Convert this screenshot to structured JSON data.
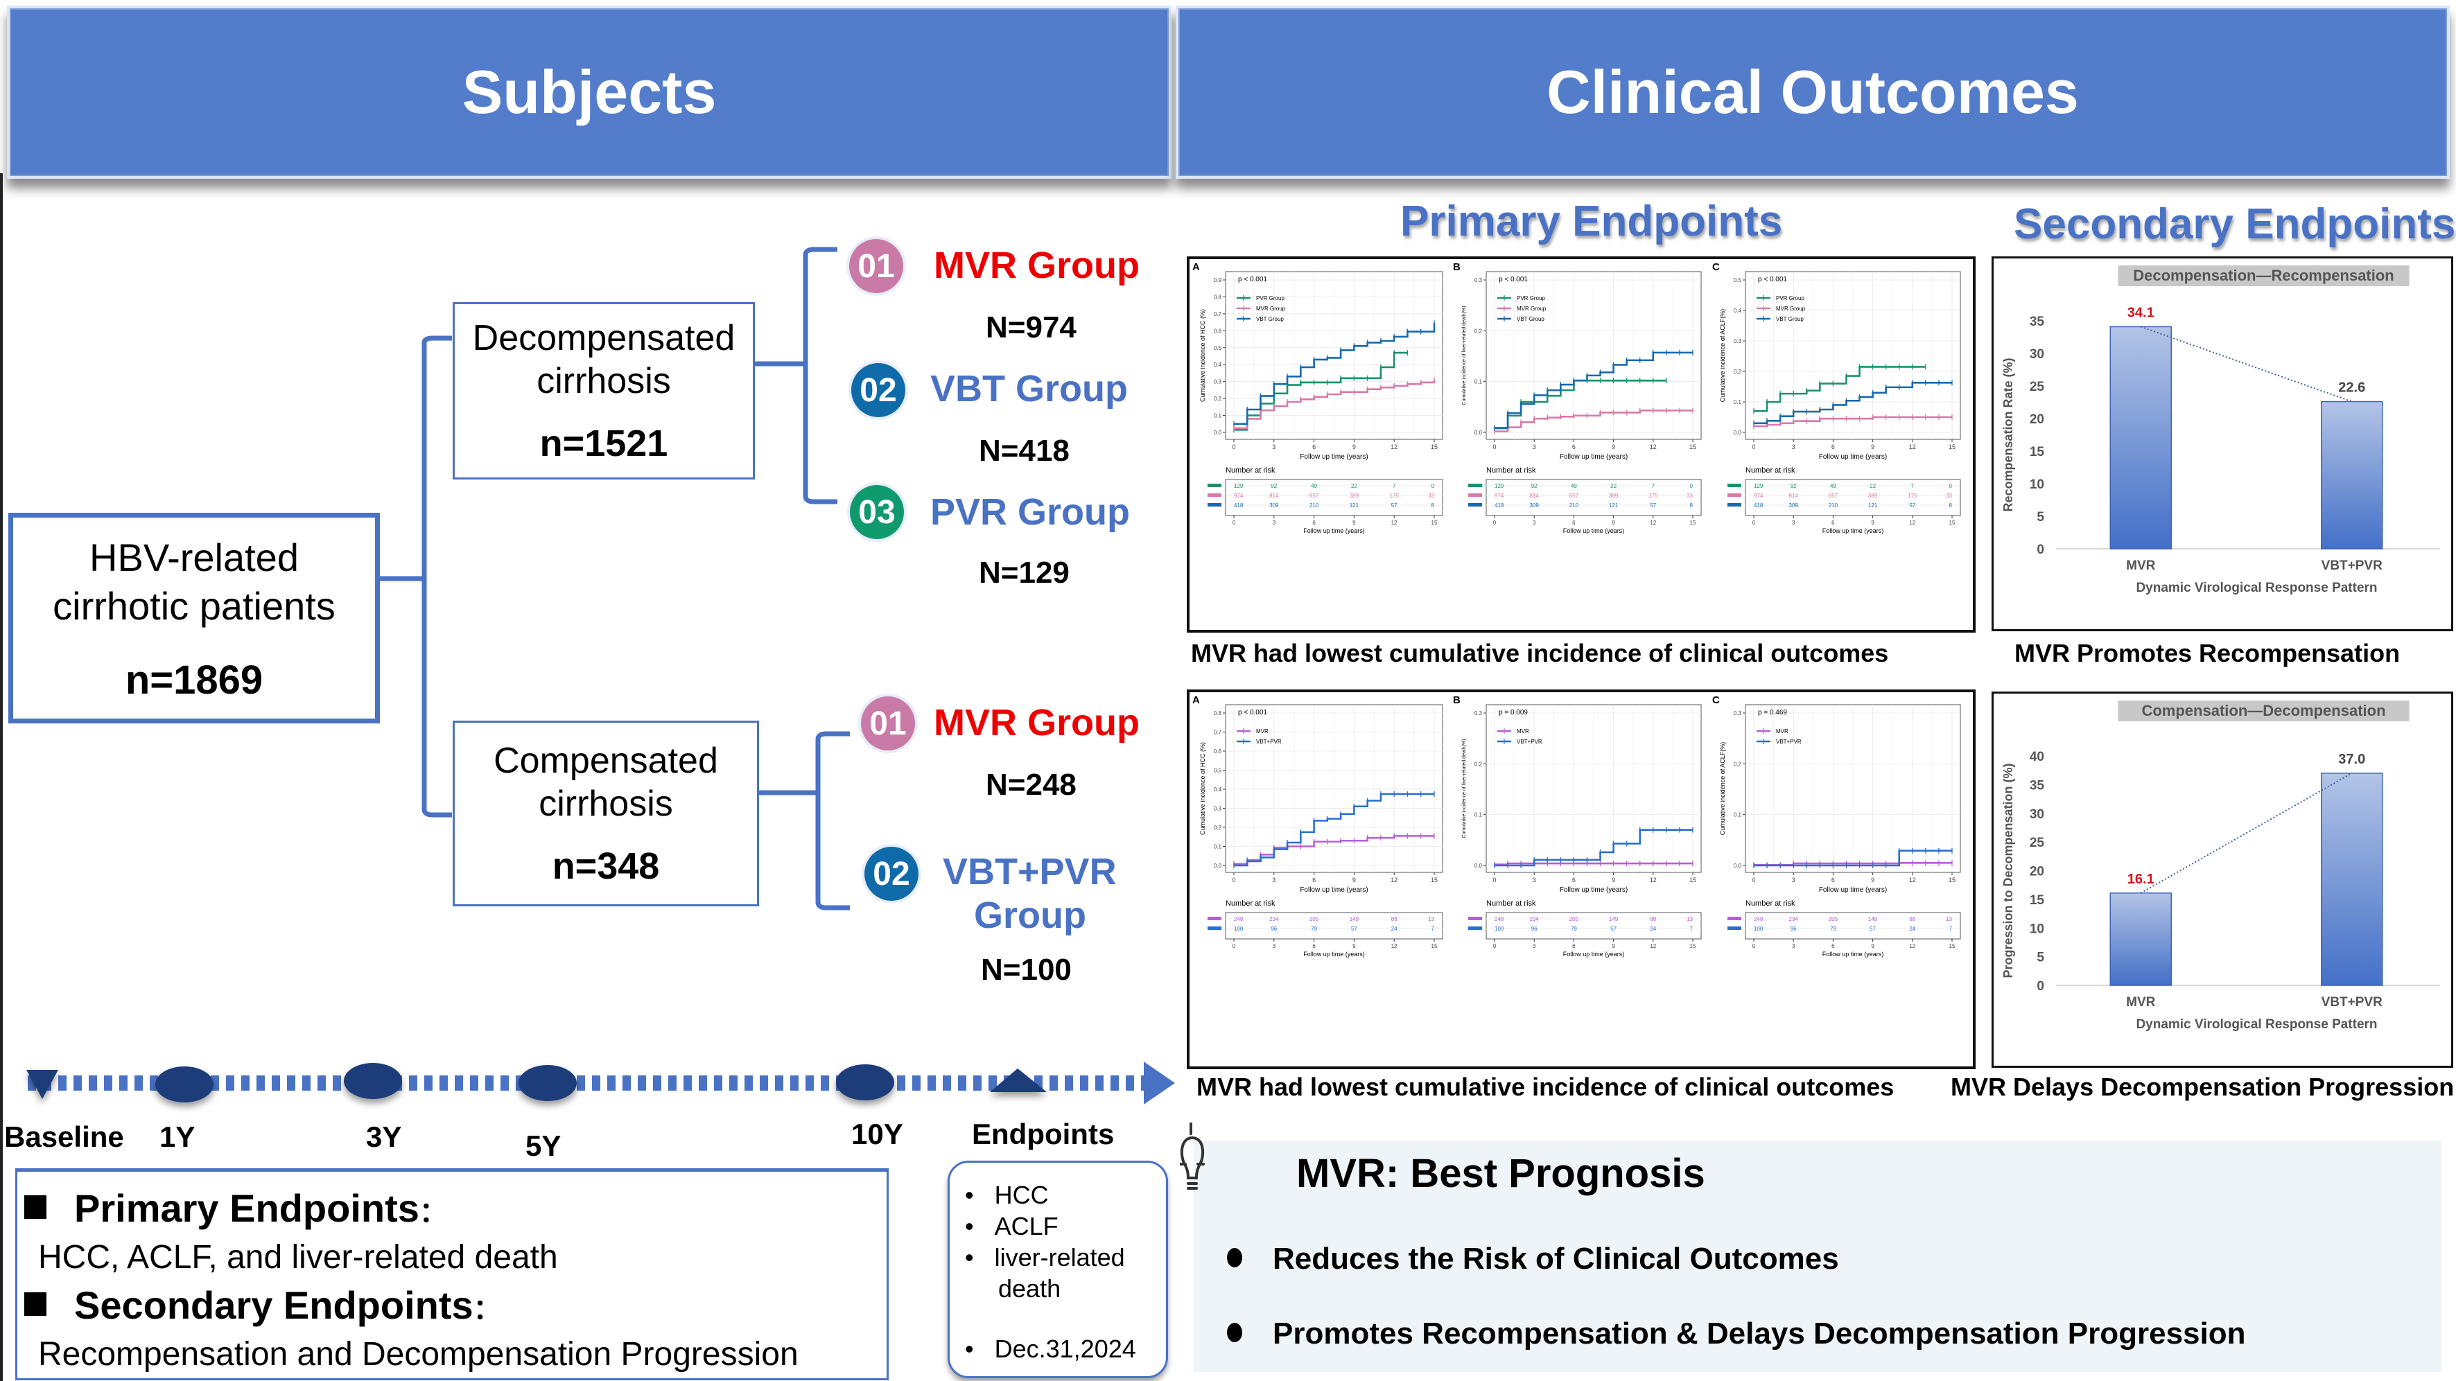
{
  "header": {
    "left_title": "Subjects",
    "right_title": "Clinical Outcomes"
  },
  "colors": {
    "header_blue": "#537dcb",
    "accent_blue": "#4a72c4",
    "mvr_red": "#ee0000",
    "badge_mvr": "#c97aa6",
    "badge_vbt": "#0f6aa9",
    "badge_pvr": "#0f9a6e",
    "km_pvr": "#17936a",
    "km_mvr": "#d77aa8",
    "km_vbt": "#1669b0",
    "km_mvr2": "#b65fd6",
    "km_vbtpvr": "#2a6fcf",
    "value_red": "#d0161b"
  },
  "flow": {
    "root": {
      "label_line1": "HBV-related",
      "label_line2": "cirrhotic patients",
      "n": "n=1869"
    },
    "decompensated": {
      "label_line1": "Decompensated",
      "label_line2": "cirrhosis",
      "n": "n=1521",
      "groups": [
        {
          "badge": "01",
          "name": "MVR Group",
          "n": "N=974"
        },
        {
          "badge": "02",
          "name": "VBT Group",
          "n": "N=418"
        },
        {
          "badge": "03",
          "name": "PVR Group",
          "n": "N=129"
        }
      ]
    },
    "compensated": {
      "label_line1": "Compensated",
      "label_line2": "cirrhosis",
      "n": "n=348",
      "groups": [
        {
          "badge": "01",
          "name": "MVR Group",
          "n": "N=248"
        },
        {
          "badge": "02",
          "name_line1": "VBT+PVR",
          "name_line2": "Group",
          "n": "N=100"
        }
      ]
    }
  },
  "timeline": {
    "labels": [
      "Baseline",
      "1Y",
      "3Y",
      "5Y",
      "10Y",
      "Endpoints"
    ],
    "endpoint_items": [
      "HCC",
      "ACLF",
      "liver-related",
      "death",
      "Dec.31,2024"
    ]
  },
  "endpoints_box": {
    "primary_heading": "Primary Endpoints",
    "primary_text": "HCC, ACLF, and liver-related death",
    "secondary_heading": "Secondary Endpoints",
    "secondary_text": "Recompensation and Decompensation Progression",
    "colon": "："
  },
  "outcomes": {
    "primary_title": "Primary Endpoints",
    "secondary_title": "Secondary Endpoints",
    "caption_top_left": "MVR had lowest cumulative incidence of clinical outcomes",
    "caption_top_right": "MVR Promotes Recompensation",
    "caption_bottom_left": "MVR had lowest cumulative incidence of clinical outcomes",
    "caption_bottom_right": "MVR Delays Decompensation Progression"
  },
  "summary": {
    "title": "MVR: Best Prognosis",
    "bullets": [
      "Reduces the Risk of Clinical Outcomes",
      "Promotes Recompensation & Delays Decompensation Progression"
    ]
  },
  "chart_data": [
    {
      "type": "line",
      "id": "km-top-A",
      "panel": "A",
      "title": "",
      "pvalue": "p < 0.001",
      "xlabel": "Follow up time (years)",
      "ylabel": "Cumulative incidence of HCC (%)",
      "xlim": [
        0,
        15
      ],
      "ylim": [
        0,
        0.9
      ],
      "xticks": [
        0,
        3,
        6,
        9,
        12,
        15
      ],
      "yticks": [
        0.0,
        0.1,
        0.2,
        0.3,
        0.4,
        0.5,
        0.6,
        0.7,
        0.8,
        0.9
      ],
      "legend": "top-left",
      "series": [
        {
          "name": "PVR Group",
          "color": "#17936a",
          "x": [
            0,
            1,
            2,
            3,
            4,
            5,
            8,
            11,
            12,
            13
          ],
          "y": [
            0.015,
            0.1,
            0.17,
            0.23,
            0.28,
            0.295,
            0.32,
            0.385,
            0.47,
            0.47
          ]
        },
        {
          "name": "MVR Group",
          "color": "#d77aa8",
          "x": [
            0,
            1,
            2,
            3,
            4,
            5,
            6,
            7,
            8,
            10,
            11,
            12,
            13,
            14,
            15
          ],
          "y": [
            0.025,
            0.08,
            0.13,
            0.155,
            0.18,
            0.195,
            0.21,
            0.225,
            0.238,
            0.255,
            0.265,
            0.275,
            0.285,
            0.295,
            0.31
          ]
        },
        {
          "name": "VBT Group",
          "color": "#1669b0",
          "x": [
            0,
            1,
            2,
            3,
            4,
            5,
            6,
            7,
            8,
            9,
            10,
            11,
            12,
            13,
            15
          ],
          "y": [
            0.05,
            0.135,
            0.215,
            0.285,
            0.33,
            0.385,
            0.43,
            0.44,
            0.485,
            0.51,
            0.53,
            0.54,
            0.565,
            0.595,
            0.645
          ]
        }
      ],
      "risk_table": {
        "title": "Number at risk",
        "times": [
          0,
          3,
          6,
          9,
          12,
          15
        ],
        "rows": [
          {
            "name": "PVR Group",
            "values": [
              129,
              92,
              49,
              22,
              7,
              0
            ]
          },
          {
            "name": "MVR Group",
            "values": [
              974,
              814,
              657,
              389,
              175,
              33
            ]
          },
          {
            "name": "VBT Group",
            "values": [
              418,
              309,
              210,
              121,
              57,
              8
            ]
          }
        ]
      }
    },
    {
      "type": "line",
      "id": "km-top-B",
      "panel": "B",
      "pvalue": "p < 0.001",
      "xlabel": "Follow up time (years)",
      "ylabel": "Cumulative incidence of liver-related death(%)",
      "xlim": [
        0,
        15
      ],
      "ylim": [
        0,
        0.3
      ],
      "xticks": [
        0,
        3,
        6,
        9,
        12,
        15
      ],
      "yticks": [
        0.0,
        0.1,
        0.2,
        0.3
      ],
      "legend": "top-left",
      "series": [
        {
          "name": "PVR Group",
          "color": "#17936a",
          "x": [
            0,
            1,
            2,
            4,
            5,
            6,
            13
          ],
          "y": [
            0.008,
            0.033,
            0.06,
            0.072,
            0.083,
            0.102,
            0.102
          ]
        },
        {
          "name": "MVR Group",
          "color": "#d77aa8",
          "x": [
            0,
            1,
            2,
            3,
            4,
            5,
            6,
            8,
            11,
            15
          ],
          "y": [
            0.002,
            0.01,
            0.02,
            0.027,
            0.029,
            0.031,
            0.033,
            0.039,
            0.043,
            0.043
          ]
        },
        {
          "name": "VBT Group",
          "color": "#1669b0",
          "x": [
            0,
            1,
            2,
            3,
            4,
            5,
            6,
            7,
            8,
            9,
            10,
            12,
            15
          ],
          "y": [
            0.009,
            0.038,
            0.056,
            0.073,
            0.083,
            0.094,
            0.102,
            0.112,
            0.118,
            0.133,
            0.142,
            0.157,
            0.157
          ]
        }
      ],
      "risk_table": {
        "title": "Number at risk",
        "times": [
          0,
          3,
          6,
          9,
          12,
          15
        ],
        "rows": [
          {
            "name": "PVR Group",
            "values": [
              129,
              92,
              49,
              22,
              7,
              0
            ]
          },
          {
            "name": "MVR Group",
            "values": [
              974,
              814,
              657,
              389,
              175,
              33
            ]
          },
          {
            "name": "VBT Group",
            "values": [
              418,
              309,
              210,
              121,
              57,
              8
            ]
          }
        ]
      }
    },
    {
      "type": "line",
      "id": "km-top-C",
      "panel": "C",
      "pvalue": "p < 0.001",
      "xlabel": "Follow up time (years)",
      "ylabel": "Cumulative incidence of ACLF(%)",
      "xlim": [
        0,
        15
      ],
      "ylim": [
        0,
        0.5
      ],
      "xticks": [
        0,
        3,
        6,
        9,
        12,
        15
      ],
      "yticks": [
        0.0,
        0.1,
        0.2,
        0.3,
        0.4,
        0.5
      ],
      "legend": "top-left",
      "series": [
        {
          "name": "PVR Group",
          "color": "#17936a",
          "x": [
            0,
            1,
            2,
            4,
            5,
            7,
            8,
            13
          ],
          "y": [
            0.07,
            0.1,
            0.127,
            0.137,
            0.16,
            0.185,
            0.215,
            0.215
          ]
        },
        {
          "name": "MVR Group",
          "color": "#d77aa8",
          "x": [
            0,
            1,
            2,
            3,
            5,
            9,
            15
          ],
          "y": [
            0.02,
            0.025,
            0.03,
            0.037,
            0.045,
            0.05,
            0.05
          ]
        },
        {
          "name": "VBT Group",
          "color": "#1669b0",
          "x": [
            0,
            1,
            2,
            3,
            5,
            6,
            7,
            8,
            9,
            10,
            12,
            15
          ],
          "y": [
            0.03,
            0.038,
            0.053,
            0.068,
            0.075,
            0.09,
            0.104,
            0.116,
            0.13,
            0.148,
            0.163,
            0.163
          ]
        }
      ],
      "risk_table": {
        "title": "Number at risk",
        "times": [
          0,
          3,
          6,
          9,
          12,
          15
        ],
        "rows": [
          {
            "name": "PVR Group",
            "values": [
              129,
              92,
              49,
              22,
              7,
              0
            ]
          },
          {
            "name": "MVR Group",
            "values": [
              974,
              814,
              657,
              389,
              175,
              33
            ]
          },
          {
            "name": "VBT Group",
            "values": [
              418,
              309,
              210,
              121,
              57,
              8
            ]
          }
        ]
      }
    },
    {
      "type": "line",
      "id": "km-bottom-A",
      "panel": "A",
      "pvalue": "p < 0.001",
      "xlabel": "Follow up time (years)",
      "ylabel": "Cumulative incidence of HCC (%)",
      "xlim": [
        0,
        15
      ],
      "ylim": [
        0,
        0.8
      ],
      "xticks": [
        0,
        3,
        6,
        9,
        12,
        15
      ],
      "yticks": [
        0.0,
        0.1,
        0.2,
        0.3,
        0.4,
        0.5,
        0.6,
        0.7,
        0.8
      ],
      "legend": "top-left",
      "series": [
        {
          "name": "MVR",
          "color": "#b65fd6",
          "x": [
            0,
            1,
            2,
            3,
            4,
            6,
            8,
            10,
            12,
            15
          ],
          "y": [
            0.008,
            0.028,
            0.057,
            0.093,
            0.1,
            0.125,
            0.13,
            0.145,
            0.155,
            0.155
          ]
        },
        {
          "name": "VBT+PVR",
          "color": "#2a6fcf",
          "x": [
            0,
            1,
            2,
            3,
            4,
            5,
            6,
            7,
            8,
            9,
            10,
            11,
            15
          ],
          "y": [
            0,
            0.022,
            0.042,
            0.085,
            0.12,
            0.175,
            0.235,
            0.245,
            0.27,
            0.31,
            0.34,
            0.375,
            0.375
          ]
        }
      ],
      "risk_table": {
        "title": "Number at risk",
        "times": [
          0,
          3,
          6,
          9,
          12,
          15
        ],
        "rows": [
          {
            "name": "MVR",
            "values": [
              248,
              234,
              205,
              149,
              88,
              13
            ]
          },
          {
            "name": "VBT+PVR",
            "values": [
              100,
              96,
              79,
              57,
              24,
              7
            ]
          }
        ]
      }
    },
    {
      "type": "line",
      "id": "km-bottom-B",
      "panel": "B",
      "pvalue": "p = 0.009",
      "xlabel": "Follow up time (years)",
      "ylabel": "Cumulative incidence of liver-related death(%)",
      "xlim": [
        0,
        15
      ],
      "ylim": [
        0,
        0.3
      ],
      "xticks": [
        0,
        3,
        6,
        9,
        12,
        15
      ],
      "yticks": [
        0.0,
        0.1,
        0.2,
        0.3
      ],
      "legend": "top-left",
      "series": [
        {
          "name": "MVR",
          "color": "#b65fd6",
          "x": [
            0,
            1,
            15
          ],
          "y": [
            0.002,
            0.004,
            0.004
          ]
        },
        {
          "name": "VBT+PVR",
          "color": "#2a6fcf",
          "x": [
            0,
            3,
            8,
            9,
            11,
            15
          ],
          "y": [
            0,
            0.011,
            0.026,
            0.043,
            0.07,
            0.07
          ]
        }
      ],
      "risk_table": {
        "title": "Number at risk",
        "times": [
          0,
          3,
          6,
          9,
          12,
          15
        ],
        "rows": [
          {
            "name": "MVR",
            "values": [
              248,
              234,
              205,
              149,
              88,
              13
            ]
          },
          {
            "name": "VBT+PVR",
            "values": [
              100,
              96,
              79,
              57,
              24,
              7
            ]
          }
        ]
      }
    },
    {
      "type": "line",
      "id": "km-bottom-C",
      "panel": "C",
      "pvalue": "p = 0.469",
      "xlabel": "Follow up time (years)",
      "ylabel": "Cumulative incidence of ACLF(%)",
      "xlim": [
        0,
        15
      ],
      "ylim": [
        0,
        0.3
      ],
      "xticks": [
        0,
        3,
        6,
        9,
        12,
        15
      ],
      "yticks": [
        0.0,
        0.1,
        0.2,
        0.3
      ],
      "legend": "top-left",
      "series": [
        {
          "name": "MVR",
          "color": "#b65fd6",
          "x": [
            0,
            3,
            11,
            15
          ],
          "y": [
            0.001,
            0.004,
            0.005,
            0.005
          ]
        },
        {
          "name": "VBT+PVR",
          "color": "#2a6fcf",
          "x": [
            0,
            11,
            15
          ],
          "y": [
            0,
            0.029,
            0.029
          ]
        }
      ],
      "risk_table": {
        "title": "Number at risk",
        "times": [
          0,
          3,
          6,
          9,
          12,
          15
        ],
        "rows": [
          {
            "name": "MVR",
            "values": [
              248,
              234,
              205,
              149,
              88,
              13
            ]
          },
          {
            "name": "VBT+PVR",
            "values": [
              100,
              96,
              79,
              57,
              24,
              7
            ]
          }
        ]
      }
    },
    {
      "type": "bar",
      "id": "bar-recompensation",
      "title": "Decompensation—Recompensation",
      "categories": [
        "MVR",
        "VBT+PVR"
      ],
      "values": [
        34.1,
        22.6
      ],
      "value_labels": [
        "34.1",
        "22.6"
      ],
      "highlight": [
        true,
        false
      ],
      "xlabel": "Dynamic Virological Response Pattern",
      "ylabel": "Recompensation Rate (%)",
      "ylim": [
        0,
        35
      ],
      "yticks": [
        0,
        5,
        10,
        15,
        20,
        25,
        30,
        35
      ],
      "trendline": "dotted"
    },
    {
      "type": "bar",
      "id": "bar-decompensation",
      "title": "Compensation—Decompensation",
      "categories": [
        "MVR",
        "VBT+PVR"
      ],
      "values": [
        16.1,
        37.0
      ],
      "value_labels": [
        "16.1",
        "37.0"
      ],
      "highlight": [
        true,
        false
      ],
      "xlabel": "Dynamic Virological Response Pattern",
      "ylabel": "Progression to Decompensation (%)",
      "ylim": [
        0,
        40
      ],
      "yticks": [
        0,
        5,
        10,
        15,
        20,
        25,
        30,
        35,
        40
      ],
      "trendline": "dotted"
    }
  ]
}
